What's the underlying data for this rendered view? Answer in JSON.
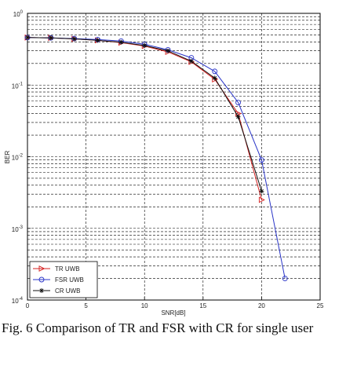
{
  "chart_data": {
    "type": "line",
    "xlabel": "SNR[dB]",
    "ylabel": "BER",
    "xlim": [
      0,
      25
    ],
    "ylim": [
      0.0001,
      1
    ],
    "yscale": "log",
    "grid": "on",
    "legend_position": "bottom-left",
    "x_ticks": [
      "0",
      "5",
      "10",
      "15",
      "20",
      "25"
    ],
    "y_ticks": [
      {
        "base": "10",
        "exp": "0",
        "value": 1
      },
      {
        "base": "10",
        "exp": "-1",
        "value": 0.1
      },
      {
        "base": "10",
        "exp": "-2",
        "value": 0.01
      },
      {
        "base": "10",
        "exp": "-3",
        "value": 0.001
      },
      {
        "base": "10",
        "exp": "-4",
        "value": 0.0001
      }
    ],
    "series": [
      {
        "name": "TR UWB",
        "color": "#d62020",
        "marker": "triangle-right",
        "x": [
          0,
          2,
          4,
          6,
          8,
          10,
          12,
          14,
          16,
          18,
          20
        ],
        "y": [
          0.46,
          0.455,
          0.44,
          0.42,
          0.39,
          0.35,
          0.29,
          0.21,
          0.12,
          0.04,
          0.0025
        ]
      },
      {
        "name": "FSR UWB",
        "color": "#2a35c8",
        "marker": "circle",
        "x": [
          0,
          2,
          4,
          6,
          8,
          10,
          12,
          14,
          16,
          18,
          20,
          22
        ],
        "y": [
          0.46,
          0.455,
          0.445,
          0.43,
          0.41,
          0.37,
          0.31,
          0.24,
          0.155,
          0.057,
          0.009,
          0.0002
        ]
      },
      {
        "name": "CR UWB",
        "color": "#111111",
        "marker": "star",
        "x": [
          0,
          2,
          4,
          6,
          8,
          10,
          12,
          14,
          16,
          18,
          20
        ],
        "y": [
          0.46,
          0.455,
          0.44,
          0.42,
          0.395,
          0.355,
          0.3,
          0.215,
          0.125,
          0.036,
          0.0033
        ]
      }
    ]
  },
  "caption": "Fig. 6 Comparison of TR and FSR with CR for single user"
}
